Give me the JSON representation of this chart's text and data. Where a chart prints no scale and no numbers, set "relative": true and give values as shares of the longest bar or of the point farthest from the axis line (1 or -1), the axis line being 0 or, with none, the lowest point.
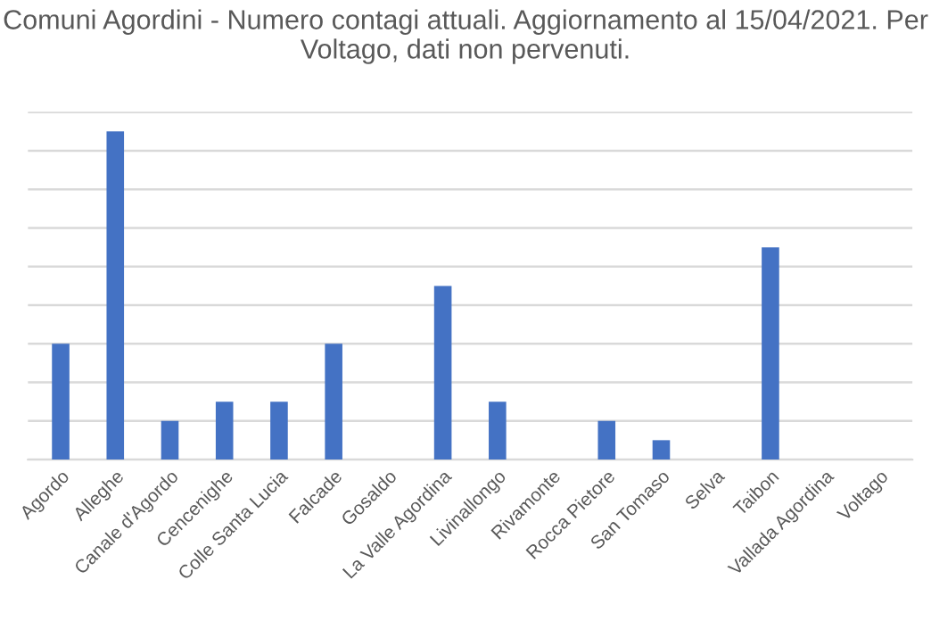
{
  "chart_data": {
    "type": "bar",
    "title": "Comuni Agordini - Numero contagi attuali. Aggiornamento al 15/04/2021. Per Voltago, dati non pervenuti.",
    "categories": [
      "Agordo",
      "Alleghe",
      "Canale d'Agordo",
      "Cencenighe",
      "Colle Santa Lucia",
      "Falcade",
      "Gosaldo",
      "La Valle Agordina",
      "Livinallongo",
      "Rivamonte",
      "Rocca Pietore",
      "San Tomaso",
      "Selva",
      "Taibon",
      "Vallada Agordina",
      "Voltago"
    ],
    "values": [
      0.353,
      1,
      0.118,
      0.176,
      0.176,
      0.353,
      0,
      0.529,
      0.176,
      0,
      0.118,
      0.059,
      0,
      0.647,
      0,
      null
    ],
    "color": "#4472c4",
    "relative": true,
    "grid": "y"
  }
}
